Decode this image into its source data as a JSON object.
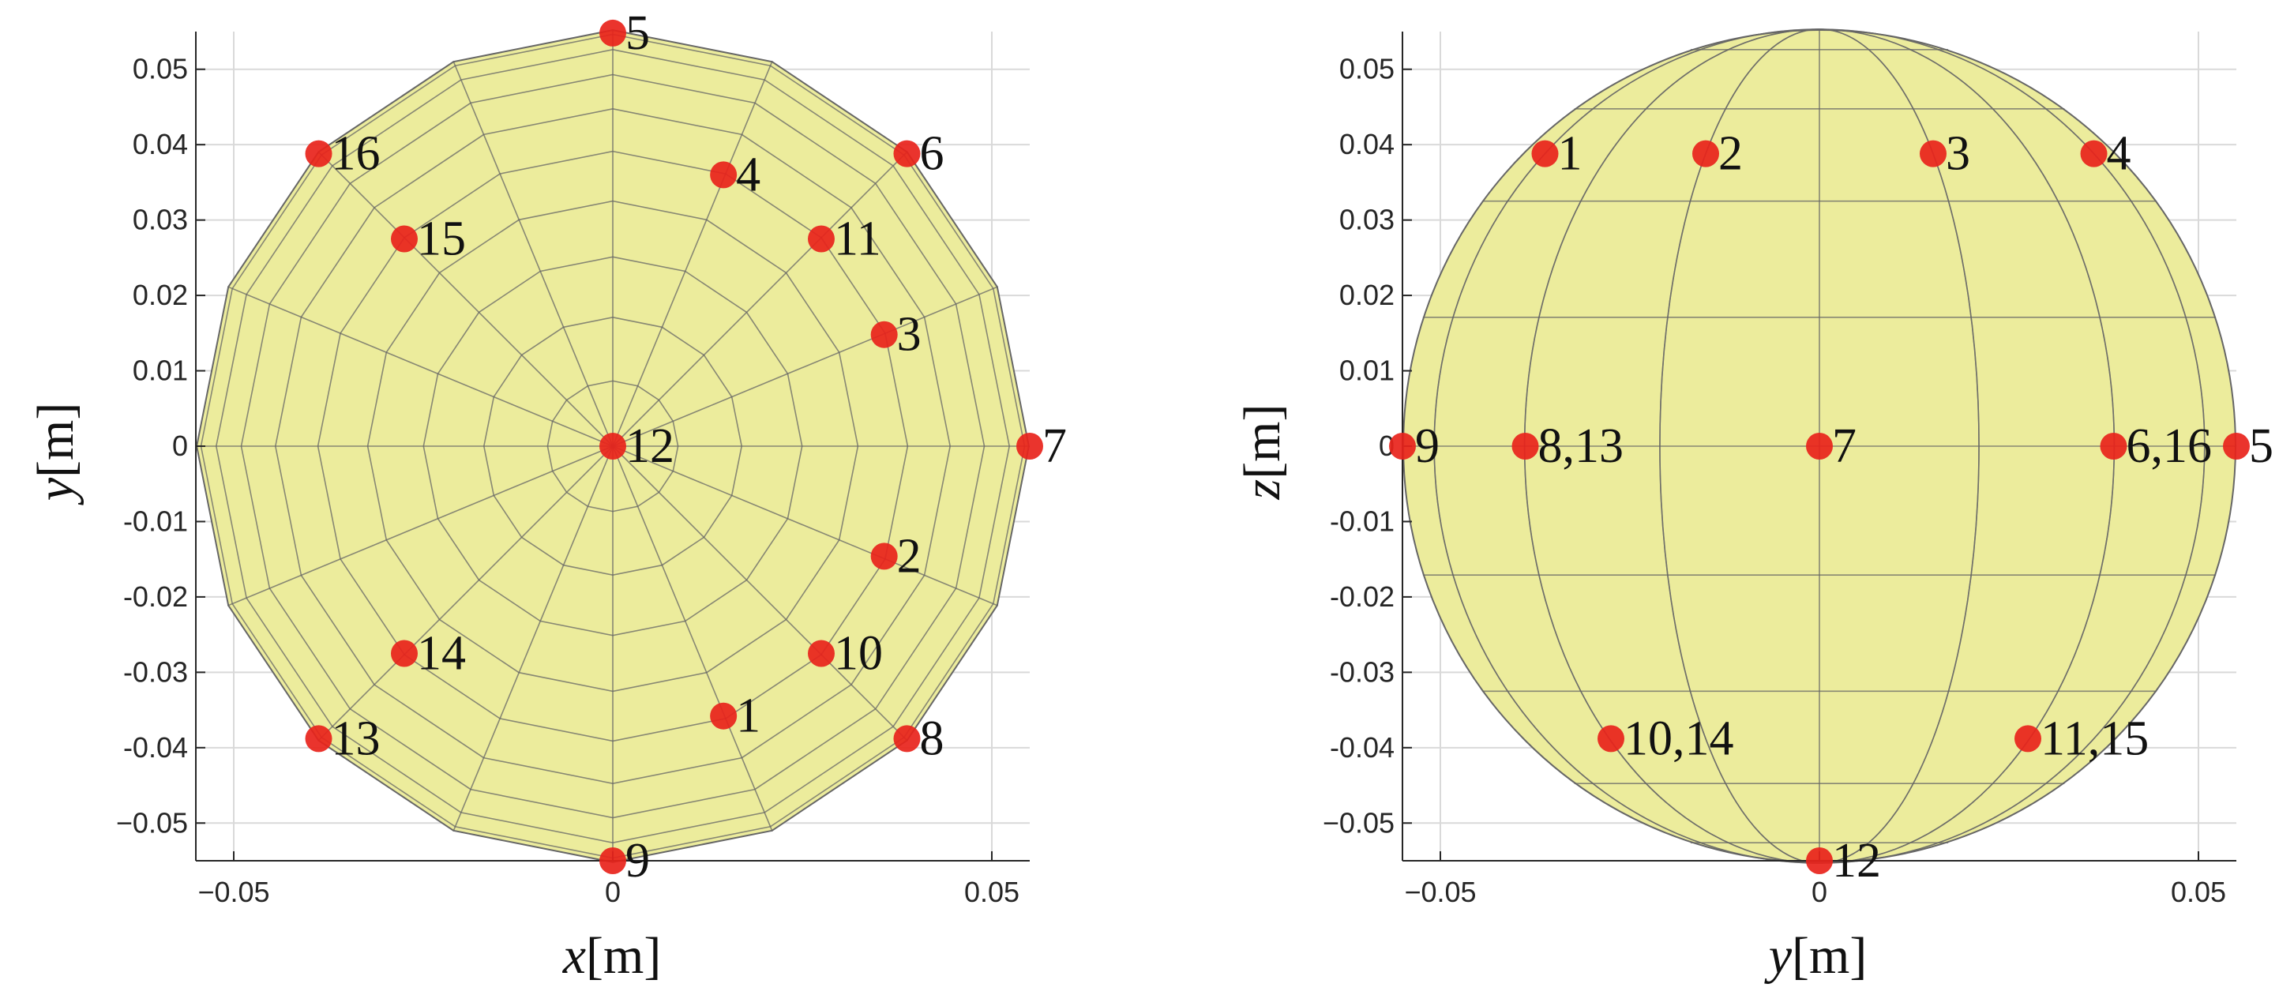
{
  "colors": {
    "sphere_fill": "#ecec9c",
    "sphere_edge": "#666666",
    "marker": "#e8231b",
    "grid": "#d9d9d9",
    "axis": "#262626"
  },
  "chart_data": [
    {
      "type": "scatter",
      "title": "",
      "xlabel": {
        "var": "x",
        "unit": "[m]"
      },
      "ylabel": {
        "var": "y",
        "unit": "[m]"
      },
      "xlim": [
        -0.055,
        0.055
      ],
      "ylim": [
        -0.055,
        0.055
      ],
      "grid": true,
      "view": "top",
      "xticks": [
        {
          "v": -0.05,
          "t": "−0.05"
        },
        {
          "v": 0,
          "t": "0"
        },
        {
          "v": 0.05,
          "t": "0.05"
        }
      ],
      "yticks": [
        {
          "v": 0.05,
          "t": "0.05"
        },
        {
          "v": 0.04,
          "t": "0.04"
        },
        {
          "v": 0.03,
          "t": "0.03"
        },
        {
          "v": 0.02,
          "t": "0.02"
        },
        {
          "v": 0.01,
          "t": "0.01"
        },
        {
          "v": 0,
          "t": "0"
        },
        {
          "v": -0.01,
          "t": "-0.01"
        },
        {
          "v": -0.02,
          "t": "-0.02"
        },
        {
          "v": -0.03,
          "t": "-0.03"
        },
        {
          "v": -0.04,
          "t": "-0.04"
        },
        {
          "v": -0.05,
          "t": "−0.05"
        }
      ],
      "points": [
        {
          "label": "1",
          "x": 0.0146,
          "y": -0.0358
        },
        {
          "label": "2",
          "x": 0.0358,
          "y": -0.0146
        },
        {
          "label": "3",
          "x": 0.0358,
          "y": 0.0148
        },
        {
          "label": "4",
          "x": 0.0146,
          "y": 0.036
        },
        {
          "label": "5",
          "x": 0.0,
          "y": 0.0548
        },
        {
          "label": "6",
          "x": 0.0388,
          "y": 0.0388
        },
        {
          "label": "7",
          "x": 0.055,
          "y": 0.0
        },
        {
          "label": "8",
          "x": 0.0388,
          "y": -0.0388
        },
        {
          "label": "9",
          "x": 0.0,
          "y": -0.055
        },
        {
          "label": "10",
          "x": 0.0275,
          "y": -0.0275
        },
        {
          "label": "11",
          "x": 0.0275,
          "y": 0.0275
        },
        {
          "label": "12",
          "x": 0.0,
          "y": 0.0
        },
        {
          "label": "13",
          "x": -0.0388,
          "y": -0.0388
        },
        {
          "label": "14",
          "x": -0.0275,
          "y": -0.0275
        },
        {
          "label": "15",
          "x": -0.0275,
          "y": 0.0275
        },
        {
          "label": "16",
          "x": -0.0388,
          "y": 0.0388
        }
      ]
    },
    {
      "type": "scatter",
      "title": "",
      "xlabel": {
        "var": "y",
        "unit": "[m]"
      },
      "ylabel": {
        "var": "z",
        "unit": "[m]"
      },
      "xlim": [
        -0.055,
        0.055
      ],
      "ylim": [
        -0.055,
        0.055
      ],
      "grid": true,
      "view": "side",
      "xticks": [
        {
          "v": -0.05,
          "t": "−0.05"
        },
        {
          "v": 0,
          "t": "0"
        },
        {
          "v": 0.05,
          "t": "0.05"
        }
      ],
      "yticks": [
        {
          "v": 0.05,
          "t": "0.05"
        },
        {
          "v": 0.04,
          "t": "0.04"
        },
        {
          "v": 0.03,
          "t": "0.03"
        },
        {
          "v": 0.02,
          "t": "0.02"
        },
        {
          "v": 0.01,
          "t": "0.01"
        },
        {
          "v": 0,
          "t": "0"
        },
        {
          "v": -0.01,
          "t": "-0.01"
        },
        {
          "v": -0.02,
          "t": "-0.02"
        },
        {
          "v": -0.03,
          "t": "-0.03"
        },
        {
          "v": -0.04,
          "t": "-0.04"
        },
        {
          "v": -0.05,
          "t": "−0.05"
        }
      ],
      "points": [
        {
          "label": "1",
          "x": -0.0362,
          "y": 0.0388
        },
        {
          "label": "2",
          "x": -0.015,
          "y": 0.0388
        },
        {
          "label": "3",
          "x": 0.015,
          "y": 0.0388
        },
        {
          "label": "4",
          "x": 0.0362,
          "y": 0.0388
        },
        {
          "label": "9",
          "x": -0.055,
          "y": 0.0
        },
        {
          "label": "8,13",
          "x": -0.0388,
          "y": 0.0
        },
        {
          "label": "7",
          "x": 0.0,
          "y": 0.0
        },
        {
          "label": "6,16",
          "x": 0.0388,
          "y": 0.0
        },
        {
          "label": "5",
          "x": 0.055,
          "y": 0.0
        },
        {
          "label": "10,14",
          "x": -0.0275,
          "y": -0.0388
        },
        {
          "label": "11,15",
          "x": 0.0275,
          "y": -0.0388
        },
        {
          "label": "12",
          "x": 0.0,
          "y": -0.055
        }
      ]
    }
  ]
}
